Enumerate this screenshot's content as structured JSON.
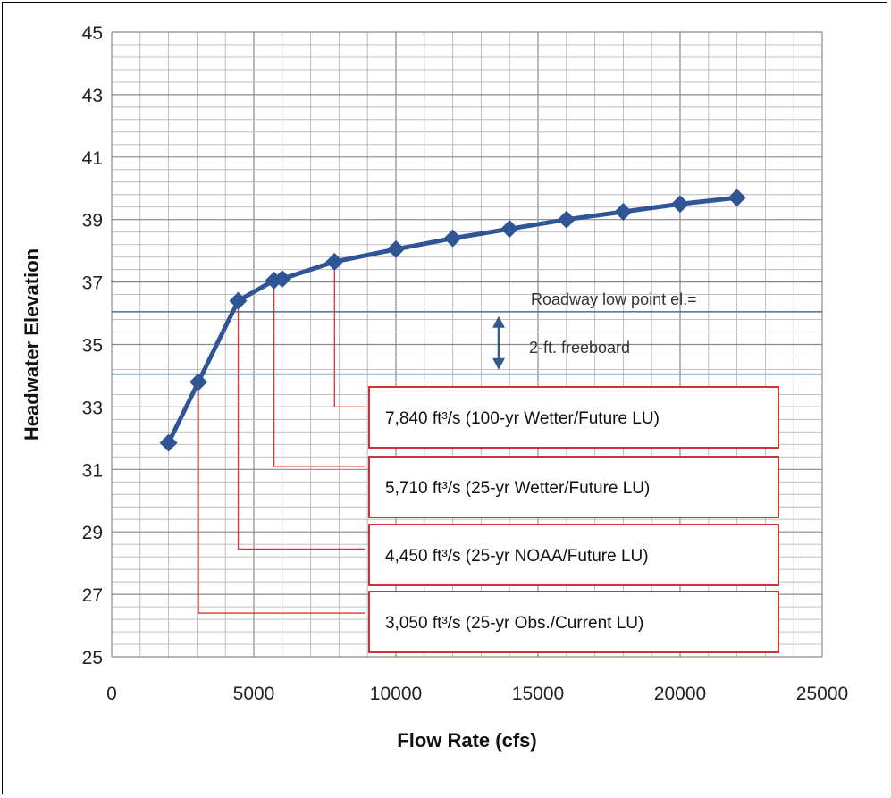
{
  "chart_data": {
    "type": "line",
    "title": "",
    "xlabel": "Flow Rate (cfs)",
    "ylabel": "Headwater Elevation",
    "xlim": [
      0,
      25000
    ],
    "ylim": [
      25,
      45
    ],
    "x_ticks": [
      "0",
      "5000",
      "10000",
      "15000",
      "20000",
      "25000"
    ],
    "y_ticks": [
      "25",
      "27",
      "29",
      "31",
      "33",
      "35",
      "37",
      "39",
      "41",
      "43",
      "45"
    ],
    "grid": true,
    "legend": "none",
    "series": [
      {
        "color": "#2f5597",
        "marker": "diamond",
        "x": [
          2000,
          3050,
          4450,
          5710,
          6000,
          7840,
          10000,
          12000,
          14000,
          16000,
          18000,
          20000,
          22000
        ],
        "y": [
          31.85,
          33.8,
          36.4,
          37.05,
          37.1,
          37.65,
          38.05,
          38.4,
          38.7,
          39.0,
          39.25,
          39.5,
          39.7
        ]
      }
    ],
    "reference_lines": [
      {
        "y": 36.05,
        "color": "#5b7a95"
      },
      {
        "y": 34.05,
        "color": "#5b7a95"
      }
    ],
    "annotations": {
      "roadway": "Roadway low point el.=",
      "freeboard": "2-ft. freeboard"
    },
    "callouts": [
      {
        "label": "7,840 ft³/s (100-yr Wetter/Future LU)",
        "x": 7840,
        "y_from": 37.65,
        "y_to": 33.0
      },
      {
        "label": "5,710 ft³/s (25-yr Wetter/Future LU)",
        "x": 5710,
        "y_from": 37.05,
        "y_to": 31.1
      },
      {
        "label": "4,450 ft³/s (25-yr NOAA/Future LU)",
        "x": 4450,
        "y_from": 36.4,
        "y_to": 28.45
      },
      {
        "label": "3,050 ft³/s (25-yr Obs./Current LU)",
        "x": 3050,
        "y_from": 33.8,
        "y_to": 26.4
      }
    ],
    "callout_color": "#e03030"
  }
}
